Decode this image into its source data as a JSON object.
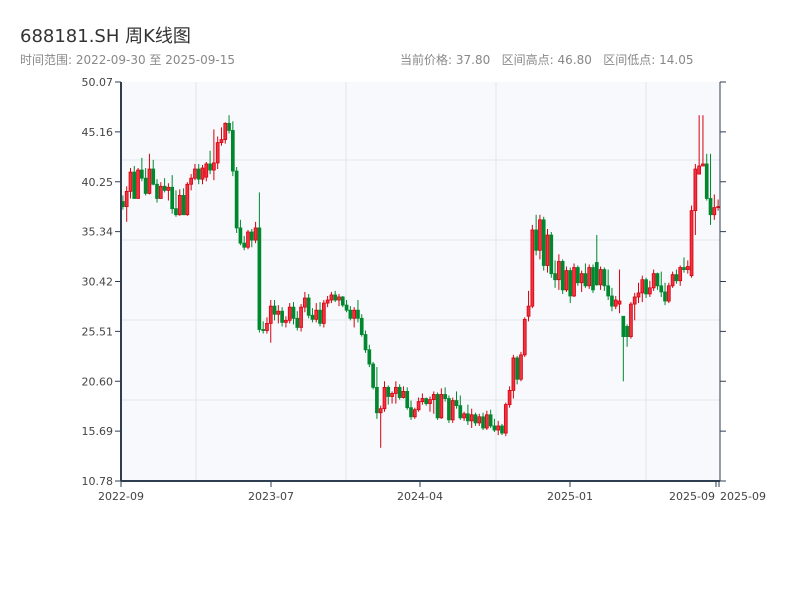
{
  "header": {
    "title": "688181.SH 周K线图",
    "range_text": "时间范围: 2022-09-30 至 2025-09-15",
    "stats_text": "当前价格: 37.80   区间高点: 46.80   区间低点: 14.05"
  },
  "chart_data": {
    "type": "candlestick",
    "title": "688181.SH 周K线图",
    "period": "weekly",
    "date_range": [
      "2022-09-30",
      "2025-09-15"
    ],
    "current_price": 37.8,
    "range_high": 46.8,
    "range_low": 14.05,
    "ylim": [
      10.78,
      50.07
    ],
    "y_ticks": [
      "50.07",
      "45.16",
      "40.25",
      "35.34",
      "30.42",
      "25.51",
      "20.60",
      "15.69",
      "10.78"
    ],
    "x_ticks": [
      "2022-09",
      "2023-07",
      "2024-04",
      "2025-01",
      "2025-09",
      "2025-09"
    ],
    "up_color": "#d7000f",
    "down_color": "#00882f",
    "grid": true,
    "ohlc_fields": [
      "open",
      "high",
      "low",
      "close"
    ],
    "candles": [
      [
        38.3,
        38.9,
        37.5,
        37.8
      ],
      [
        37.8,
        39.8,
        36.3,
        39.3
      ],
      [
        39.3,
        41.6,
        38.6,
        41.2
      ],
      [
        41.2,
        41.8,
        38.6,
        38.6
      ],
      [
        38.6,
        41.6,
        38.6,
        41.4
      ],
      [
        41.4,
        42.6,
        40.3,
        40.6
      ],
      [
        40.6,
        41.6,
        38.9,
        39.1
      ],
      [
        39.1,
        43.0,
        39.0,
        41.5
      ],
      [
        41.5,
        42.4,
        39.9,
        40.0
      ],
      [
        40.0,
        40.5,
        38.2,
        38.6
      ],
      [
        38.6,
        40.2,
        38.6,
        39.8
      ],
      [
        39.8,
        40.6,
        39.2,
        39.4
      ],
      [
        39.4,
        40.1,
        38.4,
        39.7
      ],
      [
        39.7,
        40.9,
        37.1,
        37.6
      ],
      [
        37.6,
        39.4,
        36.8,
        37.0
      ],
      [
        37.0,
        39.5,
        36.9,
        38.9
      ],
      [
        38.9,
        39.6,
        37.0,
        37.0
      ],
      [
        37.0,
        40.2,
        36.9,
        40.0
      ],
      [
        40.0,
        41.0,
        39.4,
        40.6
      ],
      [
        40.6,
        42.0,
        40.4,
        41.5
      ],
      [
        41.5,
        42.0,
        40.0,
        40.5
      ],
      [
        40.5,
        41.9,
        40.0,
        41.6
      ],
      [
        40.7,
        42.2,
        40.3,
        42.0
      ],
      [
        42.0,
        43.3,
        41.0,
        41.4
      ],
      [
        41.4,
        45.4,
        40.4,
        42.1
      ],
      [
        42.1,
        44.7,
        41.5,
        44.1
      ],
      [
        44.1,
        45.6,
        43.8,
        44.4
      ],
      [
        44.4,
        46.1,
        44.0,
        46.0
      ],
      [
        46.0,
        46.8,
        45.0,
        45.3
      ],
      [
        45.3,
        46.2,
        40.8,
        41.3
      ],
      [
        41.3,
        41.7,
        35.2,
        35.7
      ],
      [
        35.7,
        36.5,
        34.0,
        34.2
      ],
      [
        34.2,
        34.9,
        33.5,
        33.8
      ],
      [
        33.8,
        35.5,
        33.6,
        35.3
      ],
      [
        35.3,
        35.6,
        33.8,
        34.5
      ],
      [
        34.5,
        36.3,
        34.2,
        35.7
      ],
      [
        35.7,
        39.2,
        25.4,
        25.7
      ],
      [
        25.7,
        26.5,
        25.3,
        25.6
      ],
      [
        25.6,
        26.9,
        25.3,
        26.3
      ],
      [
        26.3,
        28.6,
        24.4,
        28.0
      ],
      [
        28.0,
        28.6,
        26.6,
        27.2
      ],
      [
        27.2,
        28.1,
        26.3,
        27.5
      ],
      [
        27.5,
        27.9,
        26.0,
        26.4
      ],
      [
        26.4,
        27.0,
        25.9,
        26.6
      ],
      [
        26.6,
        28.3,
        26.3,
        27.9
      ],
      [
        27.9,
        28.4,
        26.2,
        26.8
      ],
      [
        26.8,
        27.5,
        25.6,
        25.9
      ],
      [
        25.9,
        28.2,
        25.5,
        27.9
      ],
      [
        27.9,
        29.4,
        27.4,
        28.8
      ],
      [
        28.8,
        29.2,
        26.8,
        27.1
      ],
      [
        27.1,
        27.8,
        26.4,
        26.7
      ],
      [
        26.7,
        28.3,
        26.4,
        27.6
      ],
      [
        27.6,
        28.4,
        26.0,
        26.3
      ],
      [
        26.3,
        28.6,
        25.9,
        28.3
      ],
      [
        28.3,
        29.0,
        27.9,
        28.6
      ],
      [
        28.6,
        29.4,
        28.3,
        29.1
      ],
      [
        29.1,
        29.5,
        28.4,
        28.6
      ],
      [
        28.6,
        29.2,
        28.0,
        28.9
      ],
      [
        28.9,
        29.0,
        27.9,
        28.1
      ],
      [
        28.1,
        28.6,
        27.4,
        27.6
      ],
      [
        27.6,
        28.0,
        26.6,
        26.8
      ],
      [
        26.8,
        27.9,
        25.9,
        27.6
      ],
      [
        27.6,
        28.6,
        26.4,
        26.8
      ],
      [
        26.8,
        27.2,
        25.0,
        25.2
      ],
      [
        25.2,
        25.6,
        23.4,
        23.7
      ],
      [
        23.7,
        24.2,
        22.0,
        22.3
      ],
      [
        22.3,
        22.5,
        19.8,
        20.0
      ],
      [
        20.0,
        22.0,
        16.9,
        17.5
      ],
      [
        17.5,
        18.2,
        14.05,
        17.9
      ],
      [
        17.9,
        20.6,
        17.6,
        20.0
      ],
      [
        20.0,
        20.2,
        18.3,
        19.1
      ],
      [
        19.1,
        19.6,
        18.4,
        19.4
      ],
      [
        19.4,
        20.6,
        18.4,
        20.0
      ],
      [
        20.0,
        20.3,
        18.8,
        19.0
      ],
      [
        19.0,
        20.1,
        18.9,
        19.6
      ],
      [
        19.6,
        20.0,
        17.8,
        18.0
      ],
      [
        18.0,
        18.7,
        16.8,
        17.1
      ],
      [
        17.1,
        18.0,
        16.9,
        17.8
      ],
      [
        17.8,
        19.0,
        17.6,
        18.6
      ],
      [
        18.6,
        19.4,
        18.3,
        18.9
      ],
      [
        18.9,
        19.0,
        18.2,
        18.4
      ],
      [
        18.4,
        19.1,
        17.6,
        18.8
      ],
      [
        18.8,
        19.6,
        17.4,
        19.3
      ],
      [
        19.3,
        19.5,
        16.8,
        17.0
      ],
      [
        17.0,
        19.9,
        16.9,
        19.3
      ],
      [
        19.3,
        20.0,
        18.6,
        18.9
      ],
      [
        18.9,
        19.2,
        16.5,
        16.8
      ],
      [
        16.8,
        19.0,
        16.5,
        18.7
      ],
      [
        18.7,
        19.6,
        17.9,
        18.2
      ],
      [
        18.2,
        19.2,
        16.8,
        17.0
      ],
      [
        17.0,
        17.6,
        16.7,
        17.4
      ],
      [
        17.4,
        18.3,
        16.3,
        16.7
      ],
      [
        16.7,
        17.9,
        16.0,
        17.3
      ],
      [
        17.3,
        17.5,
        16.2,
        16.5
      ],
      [
        16.5,
        17.4,
        16.2,
        17.1
      ],
      [
        17.1,
        17.5,
        15.8,
        16.0
      ],
      [
        16.0,
        17.7,
        15.8,
        17.3
      ],
      [
        17.3,
        17.8,
        16.0,
        16.2
      ],
      [
        16.2,
        16.9,
        15.6,
        15.8
      ],
      [
        15.8,
        16.7,
        15.3,
        16.2
      ],
      [
        16.2,
        16.4,
        15.3,
        15.5
      ],
      [
        15.5,
        18.5,
        15.2,
        18.3
      ],
      [
        18.3,
        20.1,
        18.0,
        19.7
      ],
      [
        19.7,
        23.2,
        18.9,
        22.9
      ],
      [
        22.9,
        23.1,
        20.3,
        20.8
      ],
      [
        20.8,
        23.5,
        20.6,
        23.2
      ],
      [
        23.2,
        26.9,
        23.0,
        26.7
      ],
      [
        27.0,
        29.5,
        26.5,
        28.0
      ],
      [
        28.0,
        36.0,
        27.8,
        35.5
      ],
      [
        35.5,
        37.0,
        33.0,
        33.5
      ],
      [
        33.5,
        37.0,
        32.6,
        36.5
      ],
      [
        36.5,
        36.8,
        31.5,
        32.0
      ],
      [
        32.0,
        35.6,
        31.3,
        35.0
      ],
      [
        35.0,
        35.3,
        30.8,
        31.2
      ],
      [
        31.2,
        32.5,
        29.8,
        30.6
      ],
      [
        30.6,
        33.1,
        29.6,
        32.4
      ],
      [
        32.4,
        32.6,
        29.2,
        29.6
      ],
      [
        29.6,
        31.9,
        29.4,
        31.5
      ],
      [
        31.5,
        31.8,
        28.3,
        29.0
      ],
      [
        29.0,
        32.2,
        28.9,
        31.8
      ],
      [
        31.8,
        32.0,
        30.0,
        30.3
      ],
      [
        30.3,
        31.5,
        29.4,
        31.2
      ],
      [
        31.2,
        32.2,
        29.8,
        30.0
      ],
      [
        30.0,
        32.1,
        29.7,
        31.8
      ],
      [
        31.8,
        32.1,
        29.3,
        29.6
      ],
      [
        32.3,
        35.0,
        30.0,
        30.1
      ],
      [
        30.1,
        31.9,
        29.6,
        31.6
      ],
      [
        31.6,
        31.8,
        29.5,
        30.0
      ],
      [
        30.0,
        31.6,
        28.6,
        29.0
      ],
      [
        29.0,
        29.8,
        27.5,
        28.0
      ],
      [
        28.0,
        29.0,
        27.7,
        28.6
      ],
      [
        28.2,
        31.6,
        27.3,
        28.5
      ],
      [
        27.0,
        27.0,
        20.6,
        25.0
      ],
      [
        26.0,
        26.2,
        24.0,
        25.0
      ],
      [
        25.0,
        28.4,
        24.8,
        28.2
      ],
      [
        28.2,
        29.3,
        26.6,
        28.9
      ],
      [
        28.9,
        30.3,
        28.3,
        29.3
      ],
      [
        29.3,
        31.0,
        28.4,
        30.6
      ],
      [
        30.6,
        30.8,
        28.8,
        29.2
      ],
      [
        29.2,
        30.5,
        28.9,
        29.8
      ],
      [
        29.8,
        31.6,
        29.5,
        31.2
      ],
      [
        31.2,
        31.3,
        29.6,
        30.0
      ],
      [
        30.0,
        31.4,
        28.9,
        29.4
      ],
      [
        29.4,
        30.3,
        28.1,
        28.5
      ],
      [
        28.5,
        30.3,
        28.3,
        30.0
      ],
      [
        30.0,
        31.4,
        29.8,
        31.1
      ],
      [
        31.1,
        31.6,
        30.2,
        30.5
      ],
      [
        30.5,
        32.0,
        30.0,
        31.8
      ],
      [
        31.8,
        32.8,
        31.3,
        31.6
      ],
      [
        31.6,
        32.5,
        31.2,
        31.9
      ],
      [
        31.0,
        37.9,
        30.8,
        37.4
      ],
      [
        37.4,
        42.0,
        35.0,
        41.5
      ],
      [
        41.0,
        46.8,
        41.0,
        41.8
      ],
      [
        41.8,
        46.8,
        41.8,
        42.0
      ],
      [
        42.0,
        43.0,
        38.4,
        38.6
      ],
      [
        38.6,
        43.0,
        36.0,
        37.0
      ],
      [
        37.0,
        39.0,
        36.5,
        37.7
      ],
      [
        37.7,
        38.5,
        37.4,
        37.8
      ]
    ]
  }
}
